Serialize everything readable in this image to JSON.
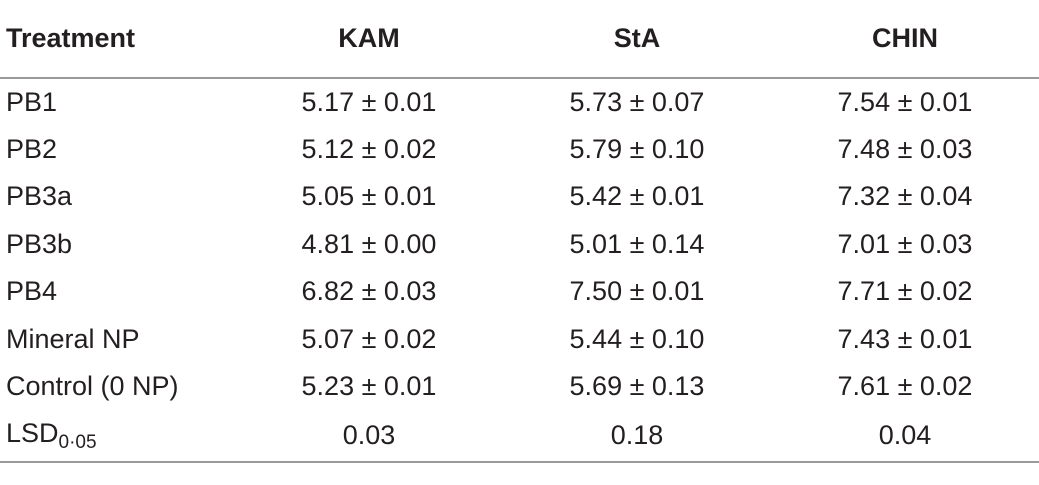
{
  "table": {
    "headers": [
      "Treatment",
      "KAM",
      "StA",
      "CHIN"
    ],
    "rows": [
      {
        "treatment": "PB1",
        "kam": "5.17 ± 0.01",
        "sta": "5.73 ± 0.07",
        "chin": "7.54 ± 0.01"
      },
      {
        "treatment": "PB2",
        "kam": "5.12 ± 0.02",
        "sta": "5.79 ± 0.10",
        "chin": "7.48 ± 0.03"
      },
      {
        "treatment": "PB3a",
        "kam": "5.05 ± 0.01",
        "sta": "5.42 ± 0.01",
        "chin": "7.32 ± 0.04"
      },
      {
        "treatment": "PB3b",
        "kam": "4.81 ± 0.00",
        "sta": "5.01 ± 0.14",
        "chin": "7.01 ± 0.03"
      },
      {
        "treatment": "PB4",
        "kam": "6.82 ± 0.03",
        "sta": "7.50 ± 0.01",
        "chin": "7.71 ± 0.02"
      },
      {
        "treatment": "Mineral NP",
        "kam": "5.07 ± 0.02",
        "sta": "5.44 ± 0.10",
        "chin": "7.43 ± 0.01"
      },
      {
        "treatment": "Control (0 NP)",
        "kam": "5.23 ± 0.01",
        "sta": "5.69 ± 0.13",
        "chin": "7.61 ± 0.02"
      }
    ],
    "lsd": {
      "label": "LSD",
      "subscript": "0·05",
      "kam": "0.03",
      "sta": "0.18",
      "chin": "0.04"
    }
  }
}
